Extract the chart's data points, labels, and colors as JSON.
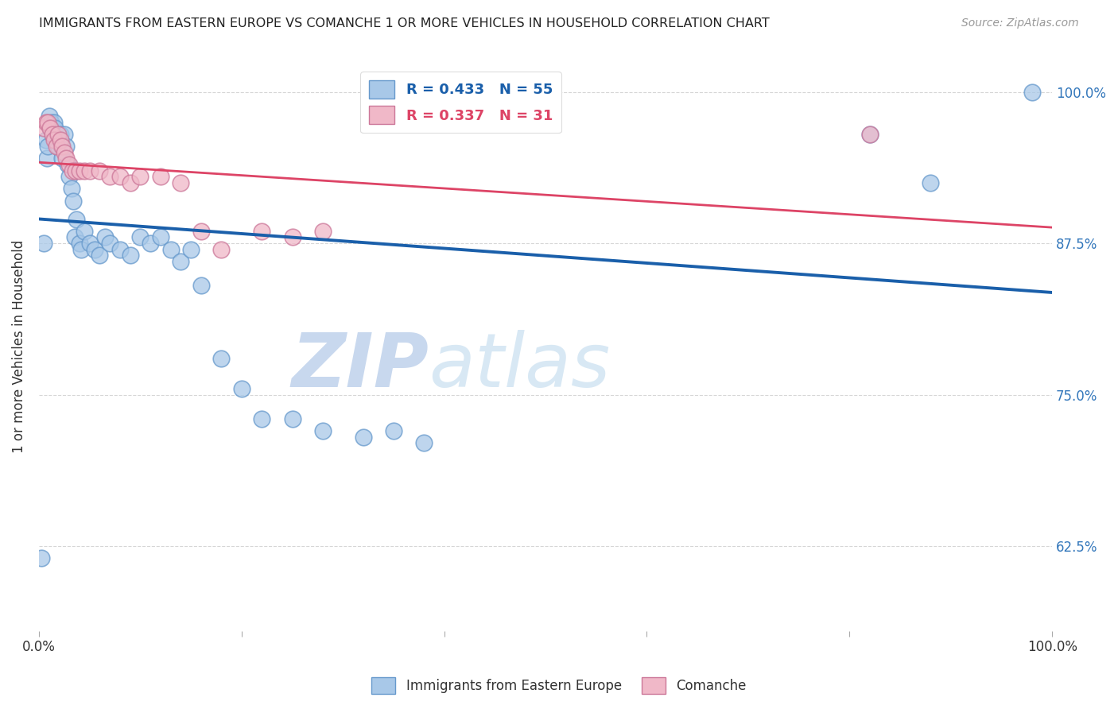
{
  "title": "IMMIGRANTS FROM EASTERN EUROPE VS COMANCHE 1 OR MORE VEHICLES IN HOUSEHOLD CORRELATION CHART",
  "source": "Source: ZipAtlas.com",
  "ylabel": "1 or more Vehicles in Household",
  "blue_label": "Immigrants from Eastern Europe",
  "pink_label": "Comanche",
  "blue_R": 0.433,
  "blue_N": 55,
  "pink_R": 0.337,
  "pink_N": 31,
  "xlim": [
    0.0,
    1.0
  ],
  "ylim": [
    0.555,
    1.025
  ],
  "yticks": [
    0.625,
    0.75,
    0.875,
    1.0
  ],
  "ytick_labels": [
    "62.5%",
    "75.0%",
    "87.5%",
    "100.0%"
  ],
  "xticks": [
    0.0,
    0.2,
    0.4,
    0.6,
    0.8,
    1.0
  ],
  "xtick_labels": [
    "0.0%",
    "",
    "",
    "",
    "",
    "100.0%"
  ],
  "blue_x": [
    0.002,
    0.005,
    0.007,
    0.008,
    0.009,
    0.01,
    0.011,
    0.012,
    0.013,
    0.014,
    0.015,
    0.016,
    0.017,
    0.018,
    0.019,
    0.02,
    0.021,
    0.022,
    0.023,
    0.025,
    0.027,
    0.028,
    0.03,
    0.032,
    0.034,
    0.035,
    0.037,
    0.04,
    0.042,
    0.045,
    0.05,
    0.055,
    0.06,
    0.065,
    0.07,
    0.08,
    0.09,
    0.1,
    0.11,
    0.12,
    0.13,
    0.14,
    0.15,
    0.16,
    0.18,
    0.2,
    0.22,
    0.25,
    0.28,
    0.32,
    0.35,
    0.38,
    0.82,
    0.88,
    0.98
  ],
  "blue_y": [
    0.615,
    0.875,
    0.96,
    0.945,
    0.955,
    0.98,
    0.97,
    0.975,
    0.965,
    0.97,
    0.975,
    0.97,
    0.965,
    0.96,
    0.955,
    0.96,
    0.965,
    0.955,
    0.945,
    0.965,
    0.955,
    0.94,
    0.93,
    0.92,
    0.91,
    0.88,
    0.895,
    0.875,
    0.87,
    0.885,
    0.875,
    0.87,
    0.865,
    0.88,
    0.875,
    0.87,
    0.865,
    0.88,
    0.875,
    0.88,
    0.87,
    0.86,
    0.87,
    0.84,
    0.78,
    0.755,
    0.73,
    0.73,
    0.72,
    0.715,
    0.72,
    0.71,
    0.965,
    0.925,
    1.0
  ],
  "pink_x": [
    0.005,
    0.007,
    0.009,
    0.011,
    0.013,
    0.015,
    0.017,
    0.019,
    0.021,
    0.023,
    0.025,
    0.027,
    0.03,
    0.033,
    0.036,
    0.04,
    0.045,
    0.05,
    0.06,
    0.07,
    0.08,
    0.09,
    0.1,
    0.12,
    0.14,
    0.16,
    0.18,
    0.22,
    0.25,
    0.28,
    0.82
  ],
  "pink_y": [
    0.97,
    0.975,
    0.975,
    0.97,
    0.965,
    0.96,
    0.955,
    0.965,
    0.96,
    0.955,
    0.95,
    0.945,
    0.94,
    0.935,
    0.935,
    0.935,
    0.935,
    0.935,
    0.935,
    0.93,
    0.93,
    0.925,
    0.93,
    0.93,
    0.925,
    0.885,
    0.87,
    0.885,
    0.88,
    0.885,
    0.965
  ],
  "title_color": "#222222",
  "source_color": "#999999",
  "blue_dot_color": "#a8c8e8",
  "blue_dot_edge": "#6699cc",
  "pink_dot_color": "#f0b8c8",
  "pink_dot_edge": "#cc7799",
  "blue_line_color": "#1a5faa",
  "pink_line_color": "#dd4466",
  "watermark_zip_color": "#c8d8ee",
  "watermark_atlas_color": "#c8d8ee",
  "grid_color": "#cccccc",
  "tick_color_right": "#3377bb",
  "background_color": "#ffffff"
}
